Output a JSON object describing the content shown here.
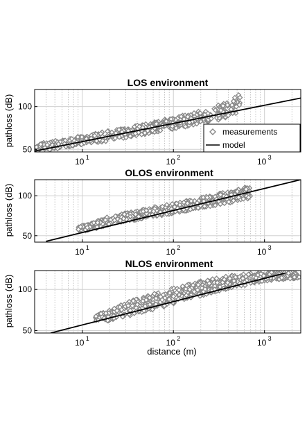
{
  "chart_data": [
    {
      "type": "scatter",
      "title": "LOS environment",
      "xlabel": "",
      "ylabel": "pathloss (dB)",
      "xscale": "log",
      "xlim": [
        3,
        2500
      ],
      "ylim": [
        47,
        120
      ],
      "xticks": [
        {
          "base": "10",
          "exp": "1",
          "value": 10
        },
        {
          "base": "10",
          "exp": "2",
          "value": 100
        },
        {
          "base": "10",
          "exp": "3",
          "value": 1000
        }
      ],
      "yticks": [
        50,
        100
      ],
      "grid": true,
      "legend": {
        "placement": "bottom-right",
        "entries": [
          {
            "label": "measurements",
            "marker": "diamond"
          },
          {
            "label": "model",
            "marker": "line"
          }
        ]
      },
      "series": [
        {
          "name": "measurements",
          "kind": "scatter",
          "color": "#888888",
          "band": {
            "x": [
              3,
              5,
              10,
              20,
              50,
              100,
              200,
              300,
              400,
              550
            ],
            "low": [
              48,
              50,
              56,
              60,
              68,
              74,
              80,
              84,
              88,
              94
            ],
            "high": [
              56,
              60,
              66,
              72,
              80,
              87,
              95,
              101,
              106,
              116
            ]
          }
        },
        {
          "name": "model",
          "kind": "line",
          "color": "#000000",
          "x": [
            3,
            2500
          ],
          "y": [
            48,
            110
          ]
        }
      ]
    },
    {
      "type": "scatter",
      "title": "OLOS environment",
      "xlabel": "",
      "ylabel": "pathloss (dB)",
      "xscale": "log",
      "xlim": [
        3,
        2500
      ],
      "ylim": [
        42,
        120
      ],
      "xticks": [
        {
          "base": "10",
          "exp": "1",
          "value": 10
        },
        {
          "base": "10",
          "exp": "2",
          "value": 100
        },
        {
          "base": "10",
          "exp": "3",
          "value": 1000
        }
      ],
      "yticks": [
        50,
        100
      ],
      "grid": true,
      "series": [
        {
          "name": "measurements",
          "kind": "scatter",
          "color": "#888888",
          "band": {
            "x": [
              9,
              11,
              15,
              20,
              50,
              100,
              200,
              300,
              500,
              700
            ],
            "low": [
              57,
              56,
              60,
              64,
              72,
              78,
              85,
              88,
              93,
              97
            ],
            "high": [
              64,
              63,
              70,
              74,
              84,
              90,
              98,
              102,
              108,
              113
            ]
          }
        },
        {
          "name": "model",
          "kind": "line",
          "color": "#000000",
          "x": [
            4,
            2500
          ],
          "y": [
            43,
            120
          ]
        }
      ]
    },
    {
      "type": "scatter",
      "title": "NLOS environment",
      "xlabel": "distance (m)",
      "ylabel": "pathloss (dB)",
      "xscale": "log",
      "xlim": [
        3,
        2500
      ],
      "ylim": [
        47,
        123
      ],
      "xticks": [
        {
          "base": "10",
          "exp": "1",
          "value": 10
        },
        {
          "base": "10",
          "exp": "2",
          "value": 100
        },
        {
          "base": "10",
          "exp": "3",
          "value": 1000
        }
      ],
      "yticks": [
        50,
        100
      ],
      "grid": true,
      "series": [
        {
          "name": "measurements",
          "kind": "scatter",
          "color": "#888888",
          "band": {
            "x": [
              14,
              20,
              30,
              50,
              100,
              200,
              300,
              500,
              800,
              1200,
              1800,
              2400
            ],
            "low": [
              62,
              62,
              66,
              72,
              82,
              92,
              98,
              103,
              108,
              111,
              113,
              114
            ],
            "high": [
              70,
              75,
              84,
              92,
              102,
              110,
              114,
              118,
              120,
              121,
              121,
              121
            ]
          }
        },
        {
          "name": "model",
          "kind": "line",
          "color": "#000000",
          "x": [
            4.5,
            1700
          ],
          "y": [
            47,
            120
          ]
        }
      ]
    }
  ]
}
